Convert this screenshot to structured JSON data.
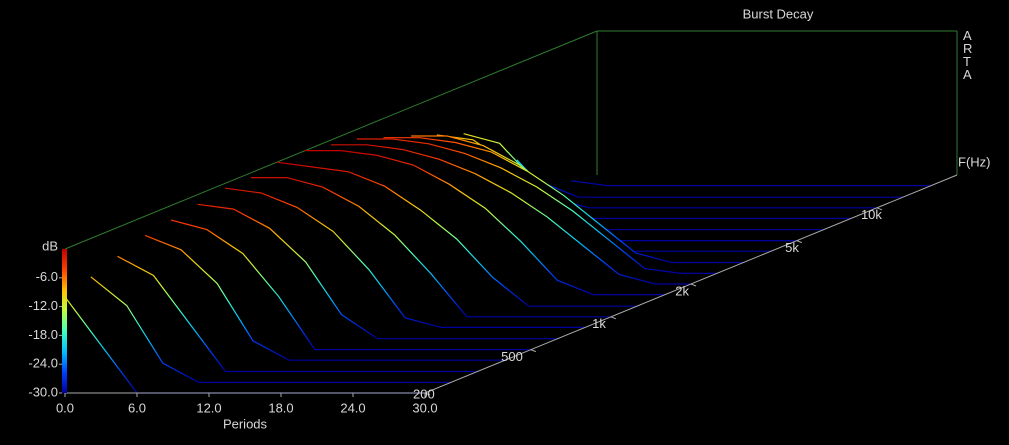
{
  "chart_data": {
    "type": "waterfall",
    "title": "Burst Decay",
    "brand": "ARTA",
    "xlabel": "Periods",
    "ylabel": "dB",
    "zlabel": "F(Hz)",
    "xlim": [
      0,
      30
    ],
    "ylim": [
      -30,
      0
    ],
    "zlim": [
      200,
      20000
    ],
    "zscale": "log",
    "xticks": [
      {
        "value": 0,
        "label": "0.0"
      },
      {
        "value": 6,
        "label": "6.0"
      },
      {
        "value": 12,
        "label": "12.0"
      },
      {
        "value": 18,
        "label": "18.0"
      },
      {
        "value": 24,
        "label": "24.0"
      },
      {
        "value": 30,
        "label": "30.0"
      }
    ],
    "yticks": [
      {
        "value": -6,
        "label": "-6.0"
      },
      {
        "value": -12,
        "label": "-12.0"
      },
      {
        "value": -18,
        "label": "-18.0"
      },
      {
        "value": -24,
        "label": "-24.0"
      },
      {
        "value": -30,
        "label": "-30.0"
      }
    ],
    "zticks": [
      200,
      500,
      {
        "value": 1000,
        "label": "1k"
      },
      {
        "value": 2000,
        "label": "2k"
      },
      {
        "value": 5000,
        "label": "5k"
      },
      {
        "value": 10000,
        "label": "10k"
      }
    ],
    "colormap": [
      "#0000a0",
      "#0040ff",
      "#00c0ff",
      "#40ffc0",
      "#c0ff40",
      "#ffc000",
      "#ff4000",
      "#c00000"
    ],
    "box_color": "#2f7a2f",
    "x": [
      0,
      3,
      6,
      9,
      12,
      15,
      18,
      21,
      24,
      27,
      30
    ],
    "z": [
      200,
      250,
      315,
      400,
      500,
      630,
      800,
      1000,
      1250,
      1600,
      2000,
      2500,
      3150,
      4000,
      5000,
      6300,
      8000,
      10000,
      12500,
      16000
    ],
    "series": [
      {
        "values": [
          -10,
          -20,
          -30,
          -30,
          -30,
          -30,
          -30,
          -30,
          -30,
          -30,
          -30
        ]
      },
      {
        "values": [
          -8,
          -14,
          -26,
          -30,
          -30,
          -30,
          -30,
          -30,
          -30,
          -30,
          -30
        ]
      },
      {
        "values": [
          -6,
          -10,
          -20,
          -30,
          -30,
          -30,
          -30,
          -30,
          -30,
          -30,
          -30
        ]
      },
      {
        "values": [
          -4,
          -7,
          -14,
          -26,
          -30,
          -30,
          -30,
          -30,
          -30,
          -30,
          -30
        ]
      },
      {
        "values": [
          -3,
          -5,
          -10,
          -19,
          -30,
          -30,
          -30,
          -30,
          -30,
          -30,
          -30
        ]
      },
      {
        "values": [
          -2,
          -3,
          -7,
          -14,
          -25,
          -30,
          -30,
          -30,
          -30,
          -30,
          -30
        ]
      },
      {
        "values": [
          -1,
          -2,
          -5,
          -10,
          -18,
          -28,
          -30,
          -30,
          -30,
          -30,
          -30
        ]
      },
      {
        "values": [
          -1,
          -1,
          -3,
          -7,
          -13,
          -21,
          -30,
          -30,
          -30,
          -30,
          -30
        ]
      },
      {
        "values": [
          0,
          -1,
          -2,
          -5,
          -10,
          -16,
          -24,
          -30,
          -30,
          -30,
          -30
        ]
      },
      {
        "values": [
          0,
          0,
          -1,
          -3,
          -7,
          -12,
          -19,
          -27,
          -30,
          -30,
          -30
        ]
      },
      {
        "values": [
          -1,
          -1,
          -2,
          -4,
          -7,
          -11,
          -16,
          -22,
          -28,
          -30,
          -30
        ]
      },
      {
        "values": [
          -2,
          -2,
          -3,
          -5,
          -8,
          -12,
          -17,
          -23,
          -29,
          -30,
          -30
        ]
      },
      {
        "values": [
          -4,
          -4,
          -5,
          -7,
          -11,
          -16,
          -22,
          -28,
          -30,
          -30,
          -30
        ]
      },
      {
        "values": [
          -6,
          -6,
          -8,
          -12,
          -18,
          -25,
          -30,
          -30,
          -30,
          -30,
          -30
        ]
      },
      {
        "values": [
          -8,
          -9,
          -14,
          -22,
          -30,
          -30,
          -30,
          -30,
          -30,
          -30,
          -30
        ]
      },
      {
        "values": [
          -10,
          -12,
          -20,
          -30,
          -30,
          -30,
          -30,
          -30,
          -30,
          -30,
          -30
        ]
      },
      {
        "values": [
          -14,
          -20,
          -30,
          -30,
          -30,
          -30,
          -30,
          -30,
          -30,
          -30,
          -30
        ]
      },
      {
        "values": [
          -20,
          -28,
          -30,
          -30,
          -30,
          -30,
          -30,
          -30,
          -30,
          -30,
          -30
        ]
      },
      {
        "values": [
          -27,
          -30,
          -30,
          -30,
          -30,
          -30,
          -30,
          -30,
          -30,
          -30,
          -30
        ]
      },
      {
        "values": [
          -29,
          -30,
          -30,
          -30,
          -30,
          -30,
          -30,
          -30,
          -30,
          -30,
          -30
        ]
      }
    ]
  }
}
